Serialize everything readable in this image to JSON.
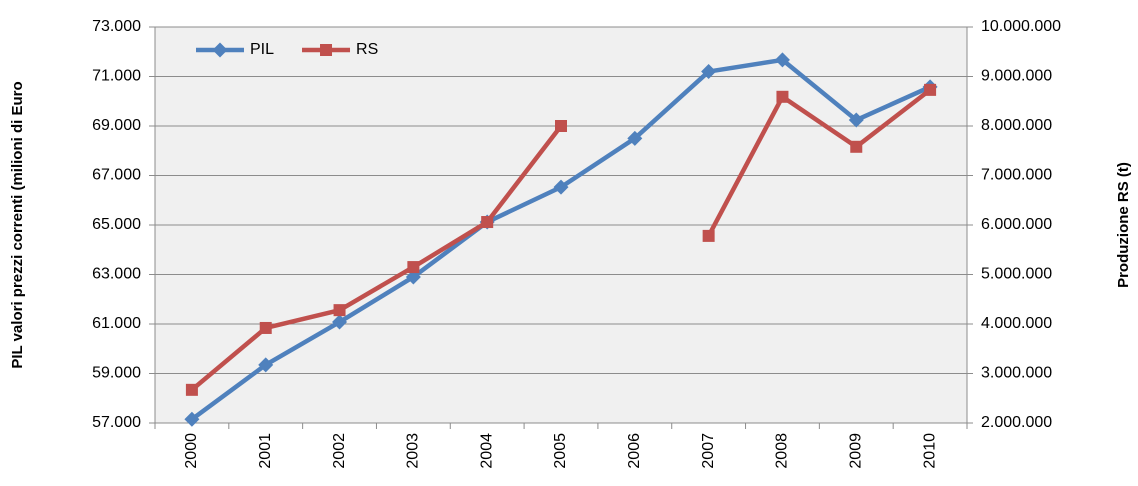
{
  "chart_data": {
    "type": "line",
    "y_label": "PIL valori prezzi correnti (milioni di Euro",
    "y2_label": "Produzione RS (t)",
    "categories": [
      "2000",
      "2001",
      "2002",
      "2003",
      "2004",
      "2005",
      "2006",
      "2007",
      "2008",
      "2009",
      "2010"
    ],
    "series": [
      {
        "name": "PIL",
        "color": "#4f81bd",
        "marker": "diamond",
        "values": [
          57150,
          59350,
          61080,
          62900,
          65120,
          66530,
          68500,
          71200,
          71670,
          69240,
          70580
        ]
      },
      {
        "name": "RS",
        "color": "#c0504d",
        "marker": "square",
        "axis": "y2",
        "values": [
          2670000,
          3920000,
          4280000,
          5150000,
          6060000,
          8000000,
          null,
          5780000,
          8590000,
          7580000,
          8730000
        ]
      }
    ],
    "ylim": [
      57000,
      73000
    ],
    "yticks": [
      {
        "value": 57000,
        "label": "57.000"
      },
      {
        "value": 59000,
        "label": "59.000"
      },
      {
        "value": 61000,
        "label": "61.000"
      },
      {
        "value": 63000,
        "label": "63.000"
      },
      {
        "value": 65000,
        "label": "65.000"
      },
      {
        "value": 67000,
        "label": "67.000"
      },
      {
        "value": 69000,
        "label": "69.000"
      },
      {
        "value": 71000,
        "label": "71.000"
      },
      {
        "value": 73000,
        "label": "73.000"
      }
    ],
    "y2lim": [
      2000000,
      10000000
    ],
    "y2ticks": [
      {
        "value": 2000000,
        "label": "2.000.000"
      },
      {
        "value": 3000000,
        "label": "3.000.000"
      },
      {
        "value": 4000000,
        "label": "4.000.000"
      },
      {
        "value": 5000000,
        "label": "5.000.000"
      },
      {
        "value": 6000000,
        "label": "6.000.000"
      },
      {
        "value": 7000000,
        "label": "7.000.000"
      },
      {
        "value": 8000000,
        "label": "8.000.000"
      },
      {
        "value": 9000000,
        "label": "9.000.000"
      },
      {
        "value": 10000000,
        "label": "10.000.000"
      }
    ],
    "grid": true,
    "legend": "top-left"
  }
}
